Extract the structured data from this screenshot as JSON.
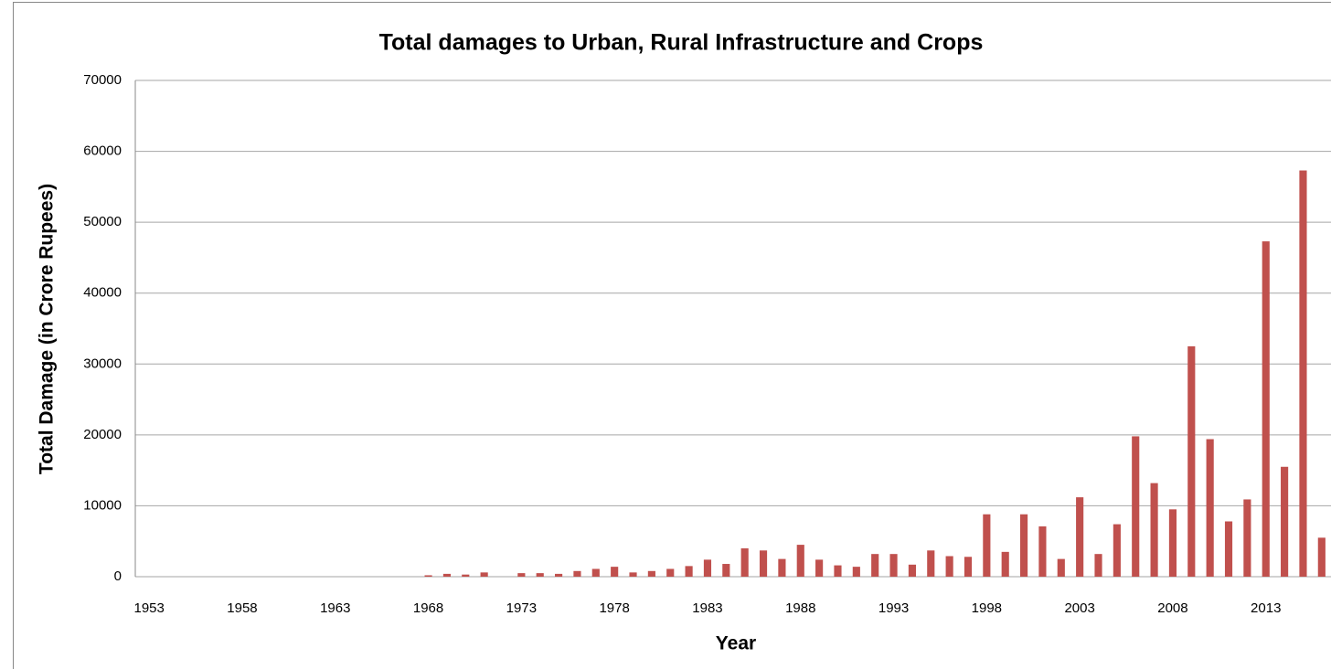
{
  "chart_data": {
    "type": "bar",
    "title": "Total damages to Urban, Rural Infrastructure and  Crops",
    "x_label": "Year",
    "y_label": "Total Damage (in Crore Rupees)",
    "categories": [
      "1953",
      null,
      null,
      null,
      null,
      "1958",
      null,
      null,
      null,
      null,
      "1963",
      null,
      null,
      null,
      null,
      "1968",
      null,
      null,
      null,
      null,
      "1973",
      null,
      null,
      null,
      null,
      "1978",
      null,
      null,
      null,
      null,
      "1983",
      null,
      null,
      null,
      null,
      "1988",
      null,
      null,
      null,
      null,
      "1993",
      null,
      null,
      null,
      null,
      "1998",
      null,
      null,
      null,
      null,
      "2003",
      null,
      null,
      null,
      null,
      "2008",
      null,
      null,
      null,
      null,
      "2013",
      null,
      null,
      null
    ],
    "values": [
      0,
      0,
      0,
      0,
      0,
      0,
      0,
      0,
      0,
      0,
      0,
      0,
      0,
      0,
      0,
      200,
      400,
      300,
      600,
      0,
      500,
      500,
      400,
      800,
      1100,
      1400,
      600,
      800,
      1100,
      1500,
      2400,
      1800,
      4000,
      3700,
      2500,
      4500,
      2400,
      1600,
      1400,
      3200,
      3200,
      1700,
      3700,
      2900,
      2800,
      8800,
      3500,
      8800,
      7100,
      2500,
      11200,
      3200,
      7400,
      19800,
      13200,
      9500,
      32500,
      19400,
      7800,
      10900,
      47300,
      15500,
      57300,
      5500
    ],
    "color": "#c0504d",
    "ylim": [
      0,
      70000
    ],
    "yticks": [
      0,
      10000,
      20000,
      30000,
      40000,
      50000,
      60000,
      70000
    ],
    "grid": true
  }
}
